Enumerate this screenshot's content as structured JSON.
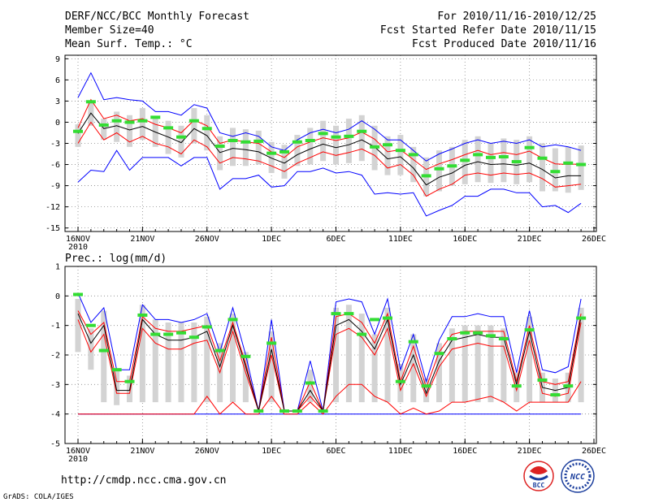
{
  "header": {
    "title": "DERF/NCC/BCC Monthly Forecast",
    "member_size": "Member Size=40",
    "variable": "Mean Surf. Temp.: °C",
    "period": "For 2010/11/16-2010/12/25",
    "refer_date": "Fcst Started Refer Date 2010/11/15",
    "produced_date": "Fcst Produced Date 2010/11/16"
  },
  "footer": {
    "url": "http://cmdp.ncc.cma.gov.cn",
    "credit": "GrADS: COLA/IGES",
    "logo_bcc": "BCC",
    "logo_ncc": "NCC"
  },
  "colors": {
    "max_min": "#0000ff",
    "spread": "#ff0000",
    "mean": "#000000",
    "box": "#d3d3d3",
    "marker": "#33dd33",
    "grid": "#888888"
  },
  "chart_data": [
    {
      "type": "line",
      "title": "Mean Surf. Temp.: °C",
      "x": [
        "16NOV",
        "17NOV",
        "18NOV",
        "19NOV",
        "20NOV",
        "21NOV",
        "22NOV",
        "23NOV",
        "24NOV",
        "25NOV",
        "26NOV",
        "27NOV",
        "28NOV",
        "29NOV",
        "30NOV",
        "1DEC",
        "2DEC",
        "3DEC",
        "4DEC",
        "5DEC",
        "6DEC",
        "7DEC",
        "8DEC",
        "9DEC",
        "10DEC",
        "11DEC",
        "12DEC",
        "13DEC",
        "14DEC",
        "15DEC",
        "16DEC",
        "17DEC",
        "18DEC",
        "19DEC",
        "20DEC",
        "21DEC",
        "22DEC",
        "23DEC",
        "24DEC",
        "25DEC"
      ],
      "x_tick_labels": [
        "16NOV",
        "21NOV",
        "26NOV",
        "1DEC",
        "6DEC",
        "11DEC",
        "16DEC",
        "21DEC",
        "26DEC"
      ],
      "year_label": "2010",
      "ylim": [
        -15.5,
        9.5
      ],
      "y_ticks": [
        9,
        6,
        3,
        0,
        -3,
        -6,
        -9,
        -12,
        -15
      ],
      "series": [
        {
          "name": "max",
          "values": [
            3.5,
            7,
            3.2,
            3.5,
            3.2,
            3,
            1.5,
            1.5,
            1,
            2.5,
            2,
            -1.5,
            -2,
            -1.5,
            -2,
            -3.5,
            -4,
            -2.5,
            -1.5,
            -1,
            -1.5,
            -1,
            0.2,
            -1,
            -2.5,
            -2.5,
            -4,
            -5.5,
            -4.5,
            -3.8,
            -3,
            -2.5,
            -3,
            -2.7,
            -3,
            -2.5,
            -3.5,
            -3.2,
            -3.5,
            -4
          ]
        },
        {
          "name": "upper",
          "values": [
            -0.8,
            3.2,
            0.5,
            1,
            0.2,
            0.5,
            -0.3,
            -0.8,
            -1.5,
            0.3,
            -0.5,
            -3,
            -2.5,
            -2.8,
            -3,
            -4.2,
            -5,
            -3.5,
            -2.8,
            -2.2,
            -2.6,
            -2.2,
            -1.4,
            -2.4,
            -4.2,
            -3.9,
            -5.3,
            -6.7,
            -5.9,
            -5.3,
            -4.6,
            -4,
            -4.6,
            -4.3,
            -4.6,
            -4.1,
            -5.1,
            -5.9,
            -6,
            -5.9
          ]
        },
        {
          "name": "mean",
          "values": [
            -1.6,
            1.3,
            -0.9,
            -0.5,
            -1.1,
            -0.6,
            -1.4,
            -2.1,
            -2.9,
            -0.9,
            -1.9,
            -4.3,
            -3.7,
            -3.9,
            -4.2,
            -5.1,
            -5.8,
            -4.6,
            -3.8,
            -3.1,
            -3.6,
            -3.2,
            -2.5,
            -3.5,
            -5.2,
            -4.9,
            -6.5,
            -8.9,
            -7.8,
            -7.2,
            -6.1,
            -5.6,
            -6,
            -5.9,
            -6.1,
            -5.8,
            -6.7,
            -7.9,
            -7.6,
            -7.6
          ]
        },
        {
          "name": "lower",
          "values": [
            -3,
            0,
            -2.5,
            -1.5,
            -2.8,
            -2,
            -3,
            -3.5,
            -4.5,
            -2.5,
            -3.5,
            -5.8,
            -5,
            -5.2,
            -5.5,
            -6.2,
            -7,
            -5.8,
            -5,
            -4.2,
            -4.7,
            -4.3,
            -3.8,
            -4.7,
            -6.5,
            -6,
            -7.5,
            -10.5,
            -9.5,
            -8.8,
            -7.5,
            -7.2,
            -7.5,
            -7.2,
            -7.4,
            -7.2,
            -8,
            -9.2,
            -9,
            -8.8
          ]
        },
        {
          "name": "min",
          "values": [
            -8.5,
            -6.8,
            -7,
            -4,
            -6.8,
            -5,
            -5,
            -5,
            -6.2,
            -5,
            -5,
            -9.5,
            -8,
            -8,
            -7.5,
            -9.2,
            -9,
            -7,
            -7,
            -6.5,
            -7.2,
            -7,
            -7.5,
            -10.2,
            -10,
            -10.2,
            -10,
            -13.3,
            -12.5,
            -11.8,
            -10.5,
            -10.5,
            -9.5,
            -9.5,
            -10,
            -10,
            -12,
            -11.8,
            -12.8,
            -11.5
          ]
        },
        {
          "name": "box_top",
          "values": [
            -0.3,
            2.8,
            0.5,
            1.5,
            1,
            2,
            0.5,
            0.2,
            -0.5,
            2,
            1,
            -2,
            -0.8,
            -1,
            -1.2,
            -2.8,
            -3.2,
            -1.8,
            -0.8,
            0.2,
            -0.5,
            0.5,
            1,
            -0.5,
            -2,
            -1.8,
            -3.5,
            -5,
            -4,
            -3.5,
            -2.5,
            -2,
            -3,
            -2.3,
            -2.5,
            -2,
            -3,
            -3.7,
            -3.5,
            -3.3
          ]
        },
        {
          "name": "box_bottom",
          "values": [
            -3.5,
            -0.5,
            -2.5,
            -2.8,
            -3.5,
            -2.5,
            -3.5,
            -4.5,
            -5,
            -3,
            -4,
            -6.8,
            -6.2,
            -6.2,
            -6,
            -7.2,
            -8,
            -6.2,
            -6,
            -5.5,
            -6,
            -5.8,
            -5.5,
            -6.8,
            -7.5,
            -7.5,
            -8.5,
            -10.5,
            -9.8,
            -9,
            -8.8,
            -8.5,
            -8.6,
            -8.5,
            -8.8,
            -8.5,
            -9.8,
            -9.8,
            -10,
            -9.6
          ]
        },
        {
          "name": "marker",
          "values": [
            -1.3,
            2.9,
            -0.4,
            0.2,
            0,
            0.2,
            0.7,
            -0.8,
            -2.1,
            0.2,
            -0.9,
            -3.4,
            -2.6,
            -2.8,
            -2.7,
            -4.4,
            -4.2,
            -2.8,
            -2.6,
            -1.6,
            -2.1,
            -2,
            -1.3,
            -3.5,
            -3.2,
            -4,
            -4.6,
            -7.6,
            -6.6,
            -6.2,
            -5.4,
            -4.6,
            -5,
            -4.9,
            -5.6,
            -3.6,
            -5.1,
            -7,
            -5.8,
            -6
          ]
        }
      ]
    },
    {
      "type": "line",
      "title": "Prec.: log(mm/d)",
      "x": [
        "16NOV",
        "17NOV",
        "18NOV",
        "19NOV",
        "20NOV",
        "21NOV",
        "22NOV",
        "23NOV",
        "24NOV",
        "25NOV",
        "26NOV",
        "27NOV",
        "28NOV",
        "29NOV",
        "30NOV",
        "1DEC",
        "2DEC",
        "3DEC",
        "4DEC",
        "5DEC",
        "6DEC",
        "7DEC",
        "8DEC",
        "9DEC",
        "10DEC",
        "11DEC",
        "12DEC",
        "13DEC",
        "14DEC",
        "15DEC",
        "16DEC",
        "17DEC",
        "18DEC",
        "19DEC",
        "20DEC",
        "21DEC",
        "22DEC",
        "23DEC",
        "24DEC",
        "25DEC"
      ],
      "x_tick_labels": [
        "16NOV",
        "21NOV",
        "26NOV",
        "1DEC",
        "6DEC",
        "11DEC",
        "16DEC",
        "21DEC",
        "26DEC"
      ],
      "year_label": "2010",
      "ylim": [
        -5,
        1
      ],
      "y_ticks": [
        1,
        0,
        -1,
        -2,
        -3,
        -4,
        -5
      ],
      "series": [
        {
          "name": "max",
          "values": [
            0.1,
            -0.9,
            -0.4,
            -2.5,
            -2.5,
            -0.3,
            -0.8,
            -0.8,
            -0.9,
            -0.8,
            -0.6,
            -1.9,
            -0.4,
            -2,
            -3.9,
            -0.8,
            -3.9,
            -3.9,
            -2.2,
            -3.9,
            -0.2,
            -0.1,
            -0.2,
            -1.3,
            -0.1,
            -2.5,
            -1.3,
            -2.9,
            -1.5,
            -0.7,
            -0.7,
            -0.6,
            -0.7,
            -0.7,
            -2.6,
            -0.5,
            -2.5,
            -2.6,
            -2.4,
            -0.1
          ]
        },
        {
          "name": "upper",
          "values": [
            -0.5,
            -1.3,
            -0.9,
            -2.9,
            -2.9,
            -0.7,
            -1.1,
            -1.2,
            -1.2,
            -1.1,
            -1,
            -2.2,
            -0.9,
            -2.3,
            -3.9,
            -1.4,
            -3.9,
            -3.9,
            -2.9,
            -3.9,
            -0.7,
            -0.6,
            -0.9,
            -1.6,
            -0.6,
            -2.9,
            -1.7,
            -3.1,
            -1.9,
            -1.3,
            -1.2,
            -1.2,
            -1.2,
            -1.2,
            -2.9,
            -1,
            -2.9,
            -3,
            -2.9,
            -0.6
          ]
        },
        {
          "name": "mean",
          "values": [
            -0.6,
            -1.6,
            -1,
            -3.2,
            -3.2,
            -0.8,
            -1.3,
            -1.5,
            -1.5,
            -1.4,
            -1.2,
            -2.4,
            -1,
            -2.4,
            -3.9,
            -1.8,
            -3.9,
            -3.9,
            -3.2,
            -3.9,
            -1,
            -0.8,
            -1.2,
            -1.8,
            -0.8,
            -3,
            -2,
            -3.3,
            -2.2,
            -1.5,
            -1.4,
            -1.3,
            -1.4,
            -1.4,
            -3,
            -1.2,
            -3.1,
            -3.2,
            -3.1,
            -0.7
          ]
        },
        {
          "name": "lower",
          "values": [
            -0.8,
            -1.9,
            -1.3,
            -3.3,
            -3.3,
            -1.1,
            -1.6,
            -1.8,
            -1.8,
            -1.6,
            -1.5,
            -2.6,
            -1.2,
            -2.6,
            -3.9,
            -2,
            -3.9,
            -3.9,
            -3.4,
            -3.9,
            -1.3,
            -1.1,
            -1.4,
            -2,
            -1.1,
            -3.2,
            -2.3,
            -3.4,
            -2.4,
            -1.8,
            -1.7,
            -1.6,
            -1.7,
            -1.7,
            -3.2,
            -1.5,
            -3.3,
            -3.4,
            -3.3,
            -0.9
          ]
        },
        {
          "name": "min",
          "values": [
            -4,
            -4,
            -4,
            -4,
            -4,
            -4,
            -4,
            -4,
            -4,
            -4,
            -4,
            -4,
            -4,
            -4,
            -4,
            -4,
            -4,
            -4,
            -4,
            -4,
            -4,
            -4,
            -4,
            -4,
            -4,
            -4,
            -4,
            -4,
            -4,
            -4,
            -4,
            -4,
            -4,
            -4,
            -4,
            -4,
            -4,
            -4,
            -4,
            -4
          ]
        },
        {
          "name": "lower_min",
          "values": [
            -4,
            -4,
            -4,
            -4,
            -4,
            -4,
            -4,
            -4,
            -4,
            -4,
            -3.4,
            -4,
            -3.6,
            -4,
            -4,
            -3.4,
            -4,
            -4,
            -3.6,
            -4,
            -3.4,
            -3,
            -3,
            -3.4,
            -3.6,
            -4,
            -3.8,
            -4,
            -3.9,
            -3.6,
            -3.6,
            -3.5,
            -3.4,
            -3.6,
            -3.9,
            -3.6,
            -3.6,
            -3.6,
            -3.6,
            -2.9
          ]
        },
        {
          "name": "box_top",
          "values": [
            -0.1,
            -1.1,
            -0.5,
            -2.5,
            -2.7,
            -0.3,
            -0.8,
            -0.9,
            -0.9,
            -0.9,
            -0.7,
            -1.6,
            -0.6,
            -1.9,
            -3.9,
            -1.2,
            -3.9,
            -3.9,
            -2.5,
            -3.9,
            -0.4,
            -0.3,
            -0.6,
            -1.3,
            -0.4,
            -2.3,
            -1.3,
            -2.8,
            -1.6,
            -1.1,
            -1,
            -1,
            -1,
            -1.1,
            -2.6,
            -0.7,
            -2.6,
            -2.8,
            -2.6,
            -0.4
          ]
        },
        {
          "name": "box_bottom",
          "values": [
            -1.9,
            -2.5,
            -3.6,
            -3.7,
            -3.6,
            -3.6,
            -3.6,
            -3.6,
            -3.6,
            -3.6,
            -3.6,
            -3.6,
            -3.6,
            -3.6,
            -3.9,
            -3.6,
            -3.9,
            -3.9,
            -3.6,
            -3.9,
            -3.6,
            -3.6,
            -3.6,
            -3.6,
            -3.6,
            -3.6,
            -3.6,
            -3.6,
            -3.6,
            -3.6,
            -3.6,
            -3.6,
            -3.6,
            -3.6,
            -3.6,
            -3.6,
            -3.6,
            -3.6,
            -3.6,
            -3.6
          ]
        },
        {
          "name": "marker",
          "values": [
            0.05,
            -1,
            -1.85,
            -2.5,
            -2.9,
            -0.65,
            -1.3,
            -1.3,
            -1.25,
            -1.4,
            -1.05,
            -1.85,
            -0.8,
            -2.05,
            -3.9,
            -1.6,
            -3.9,
            -3.9,
            -2.95,
            -3.9,
            -0.6,
            -0.6,
            -1.3,
            -0.8,
            -0.75,
            -2.9,
            -1.55,
            -3.05,
            -1.95,
            -1.45,
            -1.25,
            -1.25,
            -1.35,
            -1.45,
            -3.05,
            -1.15,
            -2.85,
            -3.35,
            -3.05,
            -0.75
          ]
        }
      ]
    }
  ]
}
